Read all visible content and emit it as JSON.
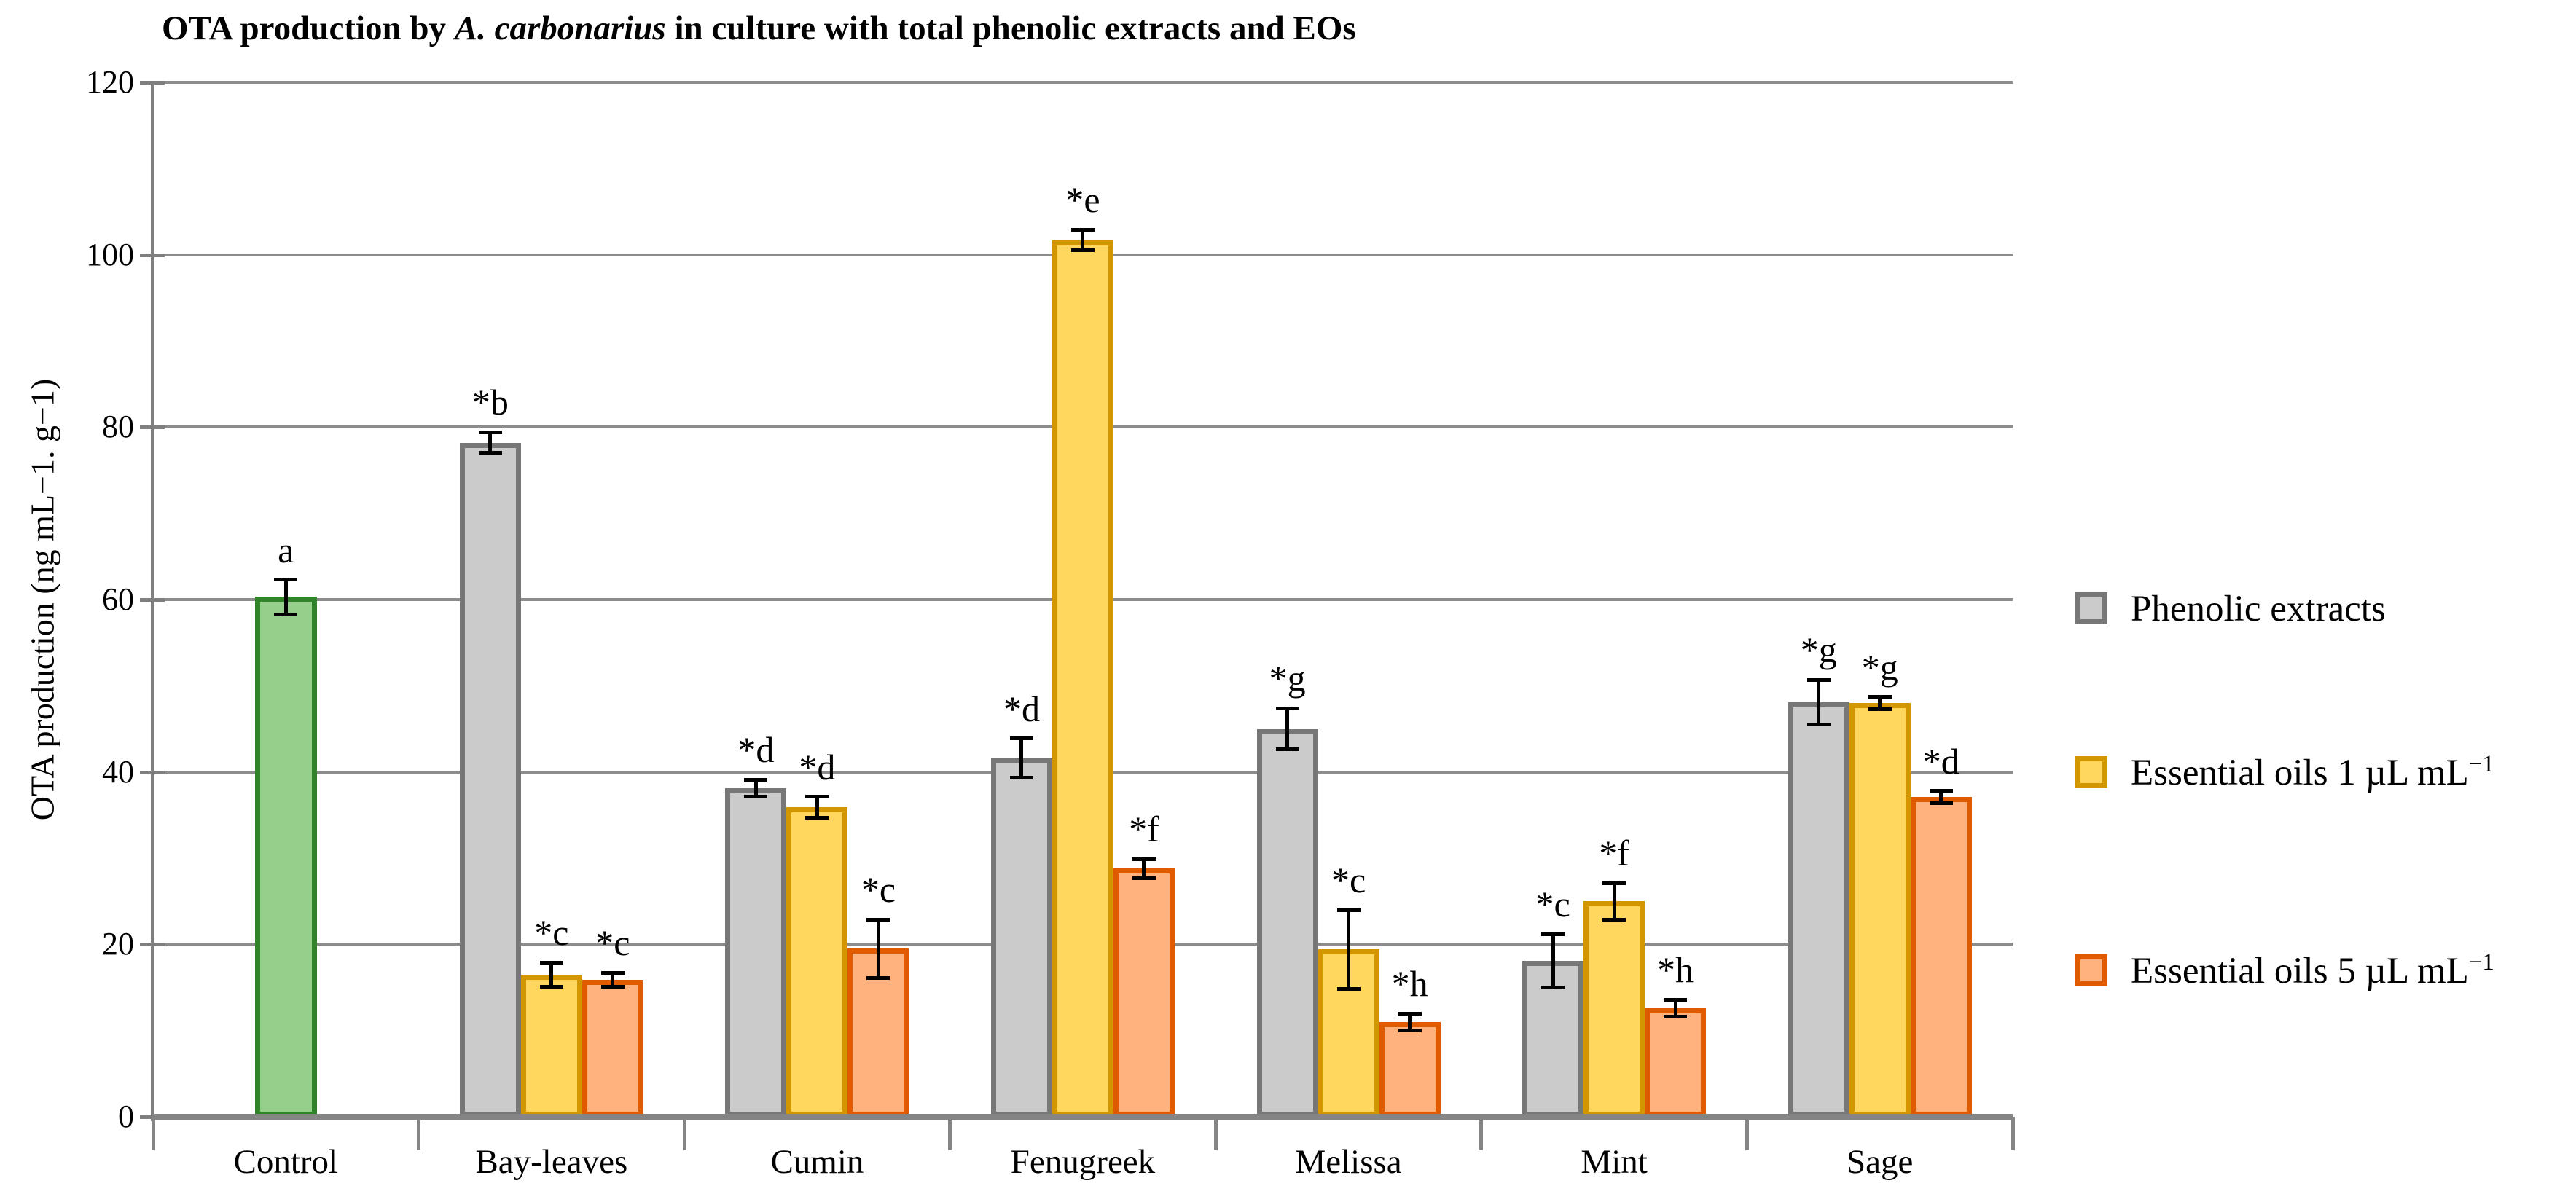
{
  "chart_data": {
    "type": "bar",
    "title": {
      "prefix": "OTA production by ",
      "italic": "A. carbonarius",
      "suffix": " in culture with total phenolic extracts and EOs"
    },
    "ylabel": "OTA production (ng mL−1. g−1)",
    "ylim": [
      0,
      120
    ],
    "yticks": [
      0,
      20,
      40,
      60,
      80,
      100,
      120
    ],
    "grid": true,
    "legend_position": "right-middle",
    "axis_colors": {
      "gridline": "#8C8C8C",
      "axis": "#7F7F7F",
      "baseline": "#858585",
      "error": "#000000"
    },
    "palette": {
      "control": {
        "fill": "#95CF8B",
        "border": "#2E8426"
      },
      "phenolic": {
        "fill": "#CBCBCB",
        "border": "#777777"
      },
      "eo1": {
        "fill": "#FFD75E",
        "border": "#D29600"
      },
      "eo5": {
        "fill": "#FFB27D",
        "border": "#E05A00"
      }
    },
    "legend": [
      {
        "key": "phenolic",
        "label": "Phenolic extracts",
        "sup": ""
      },
      {
        "key": "eo1",
        "label": "Essential oils 1 µL mL",
        "sup": "−1"
      },
      {
        "key": "eo5",
        "label": "Essential oils 5 µL mL",
        "sup": "−1"
      }
    ],
    "categories": [
      "Control",
      "Bay-leaves",
      "Cumin",
      "Fenugreek",
      "Melissa",
      "Mint",
      "Sage"
    ],
    "groups": [
      {
        "category": "Control",
        "bars": [
          {
            "key": "control",
            "series": "Control",
            "value": 60.3,
            "error": 2.0,
            "sig": "a"
          }
        ]
      },
      {
        "category": "Bay-leaves",
        "bars": [
          {
            "key": "phenolic",
            "series": "Phenolic extracts",
            "value": 78.2,
            "error": 1.2,
            "sig": "*b"
          },
          {
            "key": "eo1",
            "series": "Essential oils 1 µL mL−1",
            "value": 16.5,
            "error": 1.4,
            "sig": "*c"
          },
          {
            "key": "eo5",
            "series": "Essential oils 5 µL mL−1",
            "value": 15.9,
            "error": 0.8,
            "sig": "*c"
          }
        ]
      },
      {
        "category": "Cumin",
        "bars": [
          {
            "key": "phenolic",
            "series": "Phenolic extracts",
            "value": 38.1,
            "error": 1.0,
            "sig": "*d"
          },
          {
            "key": "eo1",
            "series": "Essential oils 1 µL mL−1",
            "value": 35.9,
            "error": 1.2,
            "sig": "*d"
          },
          {
            "key": "eo5",
            "series": "Essential oils 5 µL mL−1",
            "value": 19.5,
            "error": 3.4,
            "sig": "*c"
          }
        ]
      },
      {
        "category": "Fenugreek",
        "bars": [
          {
            "key": "phenolic",
            "series": "Phenolic extracts",
            "value": 41.6,
            "error": 2.3,
            "sig": "*d"
          },
          {
            "key": "eo1",
            "series": "Essential oils 1 µL mL−1",
            "value": 101.7,
            "error": 1.2,
            "sig": "*e"
          },
          {
            "key": "eo5",
            "series": "Essential oils 5 µL mL−1",
            "value": 28.8,
            "error": 1.1,
            "sig": "*f"
          }
        ]
      },
      {
        "category": "Melissa",
        "bars": [
          {
            "key": "phenolic",
            "series": "Phenolic extracts",
            "value": 45.0,
            "error": 2.4,
            "sig": "*g"
          },
          {
            "key": "eo1",
            "series": "Essential oils 1 µL mL−1",
            "value": 19.4,
            "error": 4.6,
            "sig": "*c"
          },
          {
            "key": "eo5",
            "series": "Essential oils 5 µL mL−1",
            "value": 11.0,
            "error": 1.0,
            "sig": "*h"
          }
        ]
      },
      {
        "category": "Mint",
        "bars": [
          {
            "key": "phenolic",
            "series": "Phenolic extracts",
            "value": 18.1,
            "error": 3.1,
            "sig": "*c"
          },
          {
            "key": "eo1",
            "series": "Essential oils 1 µL mL−1",
            "value": 25.0,
            "error": 2.1,
            "sig": "*f"
          },
          {
            "key": "eo5",
            "series": "Essential oils 5 µL mL−1",
            "value": 12.6,
            "error": 1.0,
            "sig": "*h"
          }
        ]
      },
      {
        "category": "Sage",
        "bars": [
          {
            "key": "phenolic",
            "series": "Phenolic extracts",
            "value": 48.1,
            "error": 2.6,
            "sig": "*g"
          },
          {
            "key": "eo1",
            "series": "Essential oils 1 µL mL−1",
            "value": 48.0,
            "error": 0.7,
            "sig": "*g"
          },
          {
            "key": "eo5",
            "series": "Essential oils 5 µL mL−1",
            "value": 37.1,
            "error": 0.7,
            "sig": "*d"
          }
        ]
      }
    ]
  }
}
